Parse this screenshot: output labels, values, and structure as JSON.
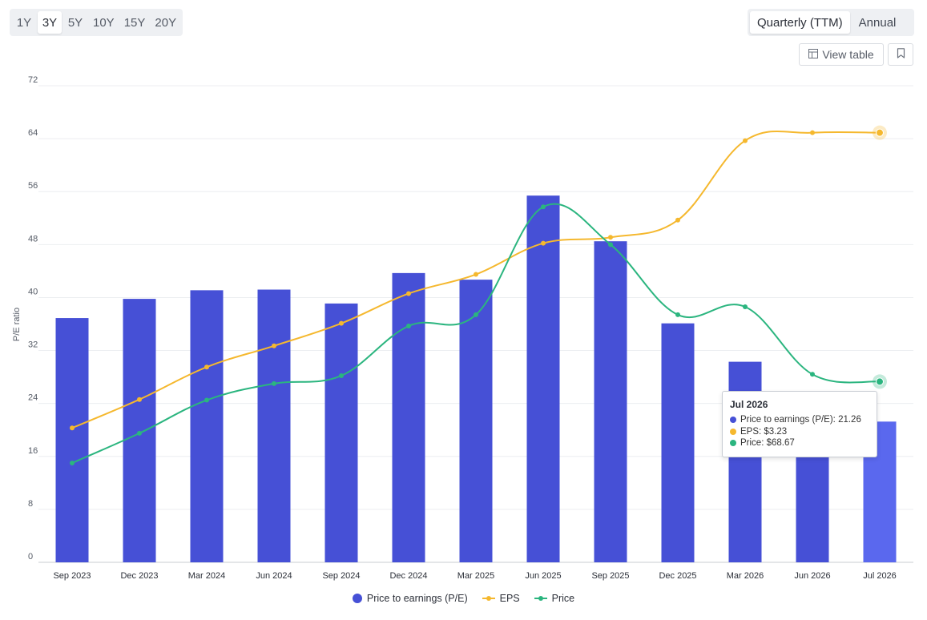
{
  "range_buttons": [
    "1Y",
    "3Y",
    "5Y",
    "10Y",
    "15Y",
    "20Y"
  ],
  "active_range": "3Y",
  "period_buttons": [
    "Quarterly (TTM)",
    "Annual"
  ],
  "active_period": "Quarterly (TTM)",
  "view_table_label": "View table",
  "colors": {
    "pe": "#4650d6",
    "pe_highlight": "#5a68ee",
    "eps": "#f5b82e",
    "price": "#2bb57f"
  },
  "tooltip": {
    "title": "Jul 2026",
    "pe": "Price to earnings (P/E): 21.26",
    "eps": "EPS: $3.23",
    "price": "Price: $68.67"
  },
  "chart_data": {
    "type": "bar",
    "categories": [
      "Sep 2023",
      "Dec 2023",
      "Mar 2024",
      "Jun 2024",
      "Sep 2024",
      "Dec 2024",
      "Mar 2025",
      "Jun 2025",
      "Sep 2025",
      "Dec 2025",
      "Mar 2026",
      "Jun 2026",
      "Jul 2026"
    ],
    "ylabel": "P/E ratio",
    "ylim": [
      0,
      72
    ],
    "yticks": [
      0,
      8,
      16,
      24,
      32,
      40,
      48,
      56,
      64,
      72
    ],
    "grid": true,
    "legend_position": "bottom-center",
    "highlighted_index": 12,
    "series": [
      {
        "name": "Price to earnings (P/E)",
        "type": "bar",
        "values": [
          36.9,
          39.8,
          41.1,
          41.2,
          39.1,
          43.7,
          42.7,
          55.4,
          48.5,
          36.1,
          30.3,
          17.0,
          21.26
        ]
      },
      {
        "name": "EPS",
        "type": "line",
        "values": [
          20.3,
          24.6,
          29.5,
          32.7,
          36.1,
          40.6,
          43.5,
          48.2,
          49.1,
          51.7,
          63.7,
          64.9,
          64.9
        ]
      },
      {
        "name": "Price",
        "type": "line",
        "values": [
          15.0,
          19.5,
          24.5,
          27.0,
          28.2,
          35.7,
          37.4,
          53.7,
          48.0,
          37.4,
          38.6,
          28.4,
          27.3
        ]
      }
    ]
  }
}
